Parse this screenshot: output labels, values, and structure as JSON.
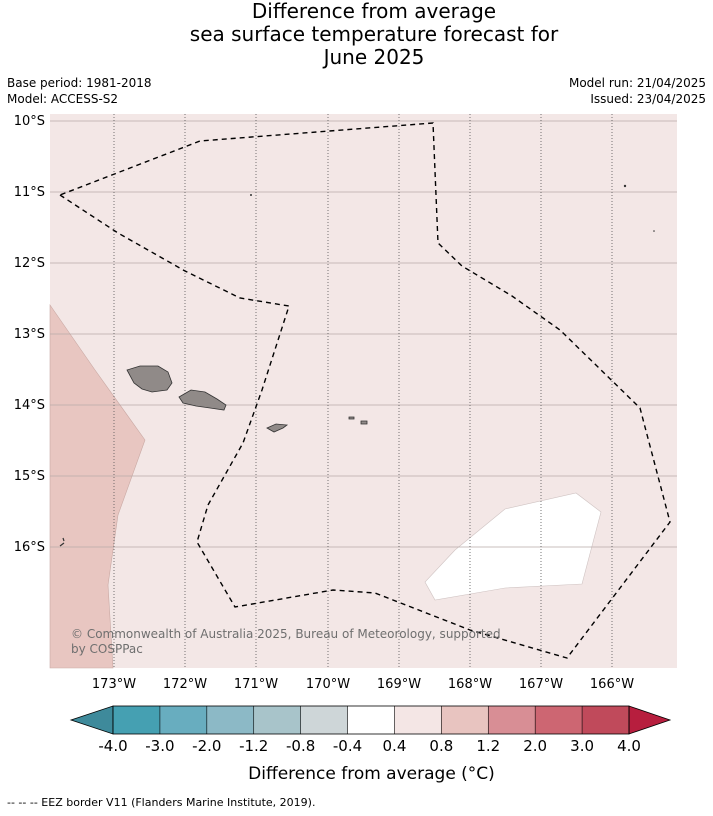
{
  "title": {
    "line1": "Difference from average",
    "line2": "sea surface temperature forecast for",
    "line3": "June 2025"
  },
  "meta": {
    "base_period": "Base period: 1981-2018",
    "model": "Model: ACCESS-S2",
    "model_run": "Model run: 21/04/2025",
    "issued": "Issued: 23/04/2025"
  },
  "map": {
    "lat_labels": [
      "10°S",
      "11°S",
      "12°S",
      "13°S",
      "14°S",
      "15°S",
      "16°S"
    ],
    "lon_labels": [
      "173°W",
      "172°W",
      "171°W",
      "170°W",
      "169°W",
      "168°W",
      "167°W",
      "166°W"
    ],
    "background_color": "#f3e7e6",
    "warm_region_color": "#e8c6c1",
    "land_color": "#908a88",
    "copyright": "© Commonwealth of Australia 2025, Bureau of Meteorology, supported",
    "copyright_line2": "by COSPPac"
  },
  "colorbar": {
    "ticks": [
      "-4.0",
      "-3.0",
      "-2.0",
      "-1.2",
      "-0.8",
      "-0.4",
      "0.4",
      "0.8",
      "1.2",
      "2.0",
      "3.0",
      "4.0"
    ],
    "colors": [
      "#45a0b2",
      "#68adbf",
      "#8cb9c6",
      "#a8c4ca",
      "#ced6d8",
      "#ffffff",
      "#f4e6e5",
      "#e8c4c0",
      "#d88e95",
      "#cd6672",
      "#c04a5b"
    ],
    "low_extend_color": "#3e8a9b",
    "high_extend_color": "#b71e3e",
    "label": "Difference from average (°C)"
  },
  "footer": "-- -- -- EEZ border V11 (Flanders Marine Institute, 2019)."
}
